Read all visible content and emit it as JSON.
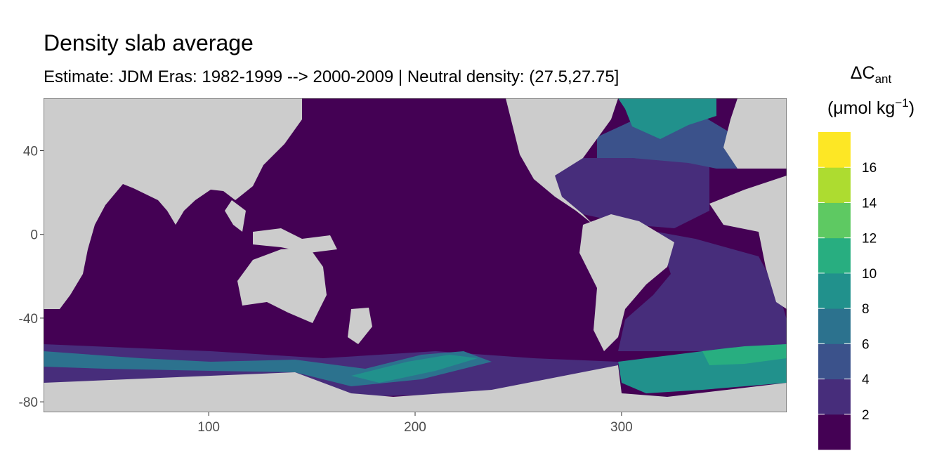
{
  "chart_data": {
    "type": "raster-map",
    "title": "Density slab average",
    "subtitle": "Estimate: JDM Eras: 1982-1999 --> 2000-2009 | Neutral density: (27.5,27.75]",
    "xlim": [
      20,
      380
    ],
    "ylim": [
      -85,
      65
    ],
    "xticks": [
      100,
      200,
      300
    ],
    "yticks": [
      40,
      0,
      -40,
      -80
    ],
    "land_color": "#cccccc",
    "legend": {
      "title": [
        "ΔC",
        "ant",
        "(μmol kg",
        "−1",
        ")"
      ],
      "limits": [
        0,
        18
      ],
      "ticks": [
        2,
        4,
        6,
        8,
        10,
        12,
        14,
        16
      ],
      "colors": [
        "#440154",
        "#472d7b",
        "#3b528b",
        "#2c728e",
        "#21918c",
        "#28ae80",
        "#5ec962",
        "#addc30",
        "#fde725"
      ]
    }
  }
}
